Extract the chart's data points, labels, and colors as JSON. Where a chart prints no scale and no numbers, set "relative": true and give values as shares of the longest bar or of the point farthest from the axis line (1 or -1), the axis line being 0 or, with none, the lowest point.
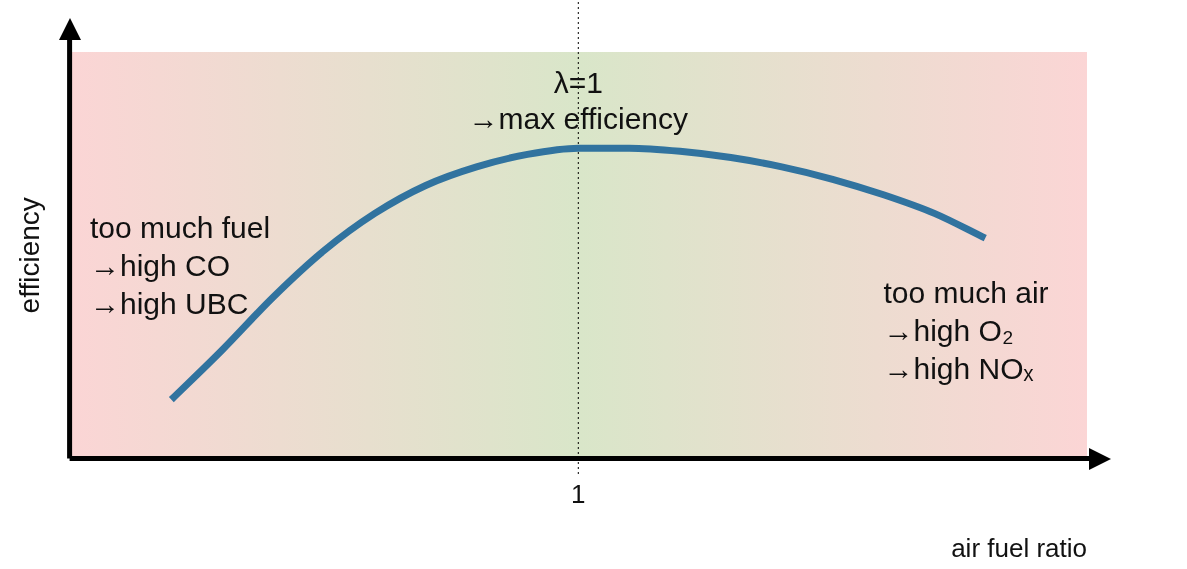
{
  "chart_data": {
    "type": "line",
    "relative": true,
    "xlabel": "air fuel ratio",
    "ylabel": "efficiency",
    "categories": [
      null,
      null,
      null,
      null,
      null,
      null,
      null,
      null,
      null,
      null,
      null,
      null,
      null,
      null,
      null,
      null,
      null,
      null,
      null,
      null,
      null
    ],
    "series": [
      {
        "color": "#31739f",
        "values": [
          null,
          null,
          0.19,
          0.35,
          0.52,
          0.67,
          0.79,
          0.88,
          0.94,
          0.98,
          1.0,
          1.0,
          0.99,
          0.97,
          0.94,
          0.9,
          0.85,
          0.79,
          0.71,
          null,
          null
        ]
      }
    ],
    "marker": "none",
    "line_style": "solid",
    "ref_lines": [
      {
        "axis": "x",
        "value": "1",
        "label": "λ=1\n→max efficiency",
        "line_style": "dotted",
        "color": "#000000"
      }
    ],
    "annotations": [
      "too much fuel\n→high CO\n→high UBC",
      "too much air\n→high O₂\n→high NOₓ"
    ]
  }
}
